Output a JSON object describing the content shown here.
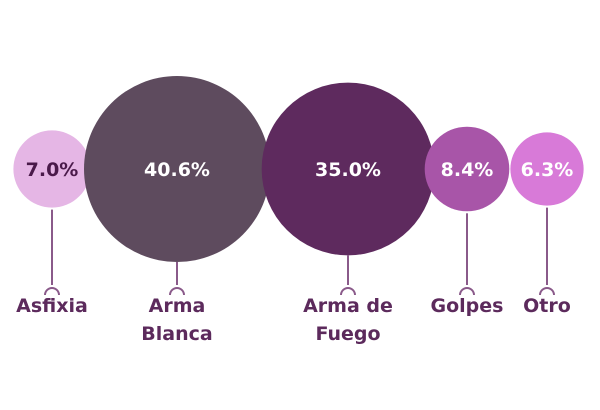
{
  "chart_data": {
    "type": "bubble",
    "categories": [
      {
        "label_lines": [
          "Asfixia"
        ],
        "value": 7.0,
        "value_label": "7.0%",
        "color": "#e5b6e5",
        "value_text_color": "#4a1a4a"
      },
      {
        "label_lines": [
          "Arma",
          "Blanca"
        ],
        "value": 40.6,
        "value_label": "40.6%",
        "color": "#5e4b5e",
        "value_text_color": "#ffffff"
      },
      {
        "label_lines": [
          "Arma de",
          "Fuego"
        ],
        "value": 35.0,
        "value_label": "35.0%",
        "color": "#5e2a5e",
        "value_text_color": "#ffffff"
      },
      {
        "label_lines": [
          "Golpes"
        ],
        "value": 8.4,
        "value_label": "8.4%",
        "color": "#a855a8",
        "value_text_color": "#ffffff"
      },
      {
        "label_lines": [
          "Otro"
        ],
        "value": 6.3,
        "value_label": "6.3%",
        "color": "#d87ad8",
        "value_text_color": "#ffffff"
      }
    ],
    "connector_color": "#8a5a8a",
    "label_color": "#5c2a5c"
  }
}
